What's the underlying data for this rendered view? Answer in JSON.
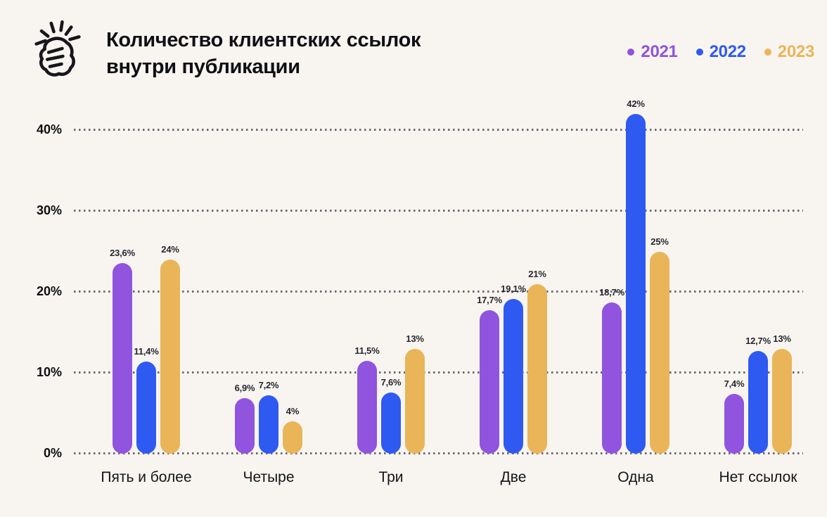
{
  "page": {
    "background": "#f8f5f1"
  },
  "header": {
    "title_line1": "Количество клиентских ссылок",
    "title_line2": "внутри публикации"
  },
  "legend": {
    "position": "top-right",
    "items": [
      {
        "label": "2021",
        "color": "#9054df"
      },
      {
        "label": "2022",
        "color": "#2e5af2"
      },
      {
        "label": "2023",
        "color": "#e9b558"
      }
    ]
  },
  "icons": {
    "logo": "snap-fingers-icon"
  },
  "chart_data": {
    "type": "bar",
    "title": "Количество клиентских ссылок внутри публикации",
    "categories": [
      "Пять и более",
      "Четыре",
      "Три",
      "Две",
      "Одна",
      "Нет ссылок"
    ],
    "series": [
      {
        "name": "2021",
        "color": "#9054df",
        "values": [
          23.6,
          6.9,
          11.5,
          17.7,
          18.7,
          7.4
        ],
        "labels": [
          "23,6%",
          "6,9%",
          "11,5%",
          "17,7%",
          "18,7%",
          "7,4%"
        ]
      },
      {
        "name": "2022",
        "color": "#2e5af2",
        "values": [
          11.4,
          7.2,
          7.6,
          19.1,
          42,
          12.7
        ],
        "labels": [
          "11,4%",
          "7,2%",
          "7,6%",
          "19,1%",
          "42%",
          "12,7%"
        ]
      },
      {
        "name": "2023",
        "color": "#e9b558",
        "values": [
          24,
          4,
          13,
          21,
          25,
          13
        ],
        "labels": [
          "24%",
          "4%",
          "13%",
          "21%",
          "25%",
          "13%"
        ]
      }
    ],
    "y_axis": {
      "ticks": [
        0,
        10,
        20,
        30,
        40
      ],
      "tick_labels": [
        "0%",
        "10%",
        "20%",
        "30%",
        "40%"
      ],
      "ylim": [
        0,
        40
      ]
    },
    "xlabel": "",
    "ylabel": "",
    "grid": {
      "style": "dotted-horizontal",
      "color": "#55515c"
    },
    "legend_position": "top-right",
    "bar_shape": "pill"
  }
}
